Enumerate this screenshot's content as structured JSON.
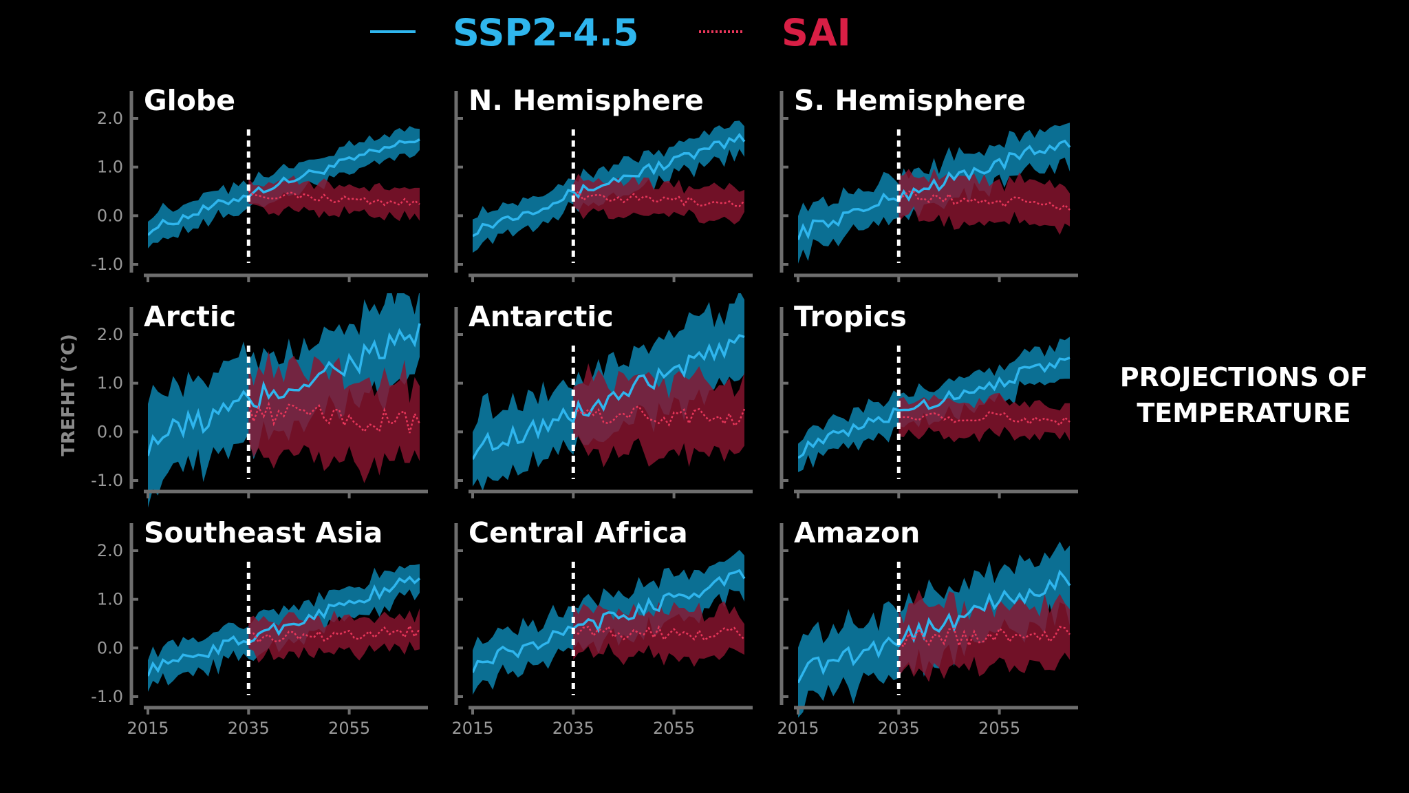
{
  "legend": {
    "ssp_label": "SSP2-4.5",
    "sai_label": "SAI"
  },
  "side_title": {
    "line1": "PROJECTIONS OF",
    "line2": "TEMPERATURE"
  },
  "colors": {
    "background": "#000000",
    "ssp_line": "#2fb6ee",
    "ssp_band": "#0b6f93",
    "sai_line": "#e8365a",
    "sai_band": "#8a1530",
    "overlap_band": "#a24f78",
    "axis": "#6e6e6e",
    "divider": "#ffffff"
  },
  "chart_data": {
    "type": "line",
    "ylabel": "TREFHT (°C)",
    "xlabel": "",
    "xlim": [
      2015,
      2069
    ],
    "ylim": [
      -1.0,
      2.0
    ],
    "x_ticks": [
      "2015",
      "2035",
      "2055"
    ],
    "y_ticks": [
      "2.0",
      "1.0",
      "0.0",
      "-1.0"
    ],
    "deployment_year": 2035,
    "series_names": [
      "SSP2-4.5",
      "SAI"
    ],
    "panels": [
      {
        "title": "Globe",
        "ssp": {
          "start": -0.3,
          "at_2035": 0.45,
          "end": 1.6,
          "spread": 0.28,
          "noise": 0.1
        },
        "sai": {
          "start": 0.45,
          "end": 0.25,
          "spread": 0.28,
          "noise": 0.08
        }
      },
      {
        "title": "N. Hemisphere",
        "ssp": {
          "start": -0.3,
          "at_2035": 0.45,
          "end": 1.6,
          "spread": 0.32,
          "noise": 0.12
        },
        "sai": {
          "start": 0.4,
          "end": 0.25,
          "spread": 0.32,
          "noise": 0.1
        }
      },
      {
        "title": "S. Hemisphere",
        "ssp": {
          "start": -0.35,
          "at_2035": 0.4,
          "end": 1.55,
          "spread": 0.42,
          "noise": 0.15
        },
        "sai": {
          "start": 0.4,
          "end": 0.2,
          "spread": 0.42,
          "noise": 0.12
        }
      },
      {
        "title": "Arctic",
        "ssp": {
          "start": -0.2,
          "at_2035": 0.6,
          "end": 2.0,
          "spread": 0.85,
          "noise": 0.3
        },
        "sai": {
          "start": 0.4,
          "end": 0.15,
          "spread": 0.85,
          "noise": 0.25
        }
      },
      {
        "title": "Antarctic",
        "ssp": {
          "start": -0.35,
          "at_2035": 0.35,
          "end": 1.85,
          "spread": 0.75,
          "noise": 0.22
        },
        "sai": {
          "start": 0.35,
          "end": 0.3,
          "spread": 0.75,
          "noise": 0.2
        }
      },
      {
        "title": "Tropics",
        "ssp": {
          "start": -0.4,
          "at_2035": 0.4,
          "end": 1.5,
          "spread": 0.35,
          "noise": 0.14
        },
        "sai": {
          "start": 0.35,
          "end": 0.25,
          "spread": 0.35,
          "noise": 0.12
        }
      },
      {
        "title": "Southeast Asia",
        "ssp": {
          "start": -0.45,
          "at_2035": 0.2,
          "end": 1.45,
          "spread": 0.35,
          "noise": 0.13
        },
        "sai": {
          "start": 0.2,
          "end": 0.35,
          "spread": 0.35,
          "noise": 0.12
        }
      },
      {
        "title": "Central Africa",
        "ssp": {
          "start": -0.35,
          "at_2035": 0.35,
          "end": 1.5,
          "spread": 0.45,
          "noise": 0.16
        },
        "sai": {
          "start": 0.3,
          "end": 0.3,
          "spread": 0.45,
          "noise": 0.14
        }
      },
      {
        "title": "Amazon",
        "ssp": {
          "start": -0.5,
          "at_2035": 0.2,
          "end": 1.45,
          "spread": 0.65,
          "noise": 0.22
        },
        "sai": {
          "start": 0.2,
          "end": 0.3,
          "spread": 0.65,
          "noise": 0.2
        }
      }
    ]
  }
}
